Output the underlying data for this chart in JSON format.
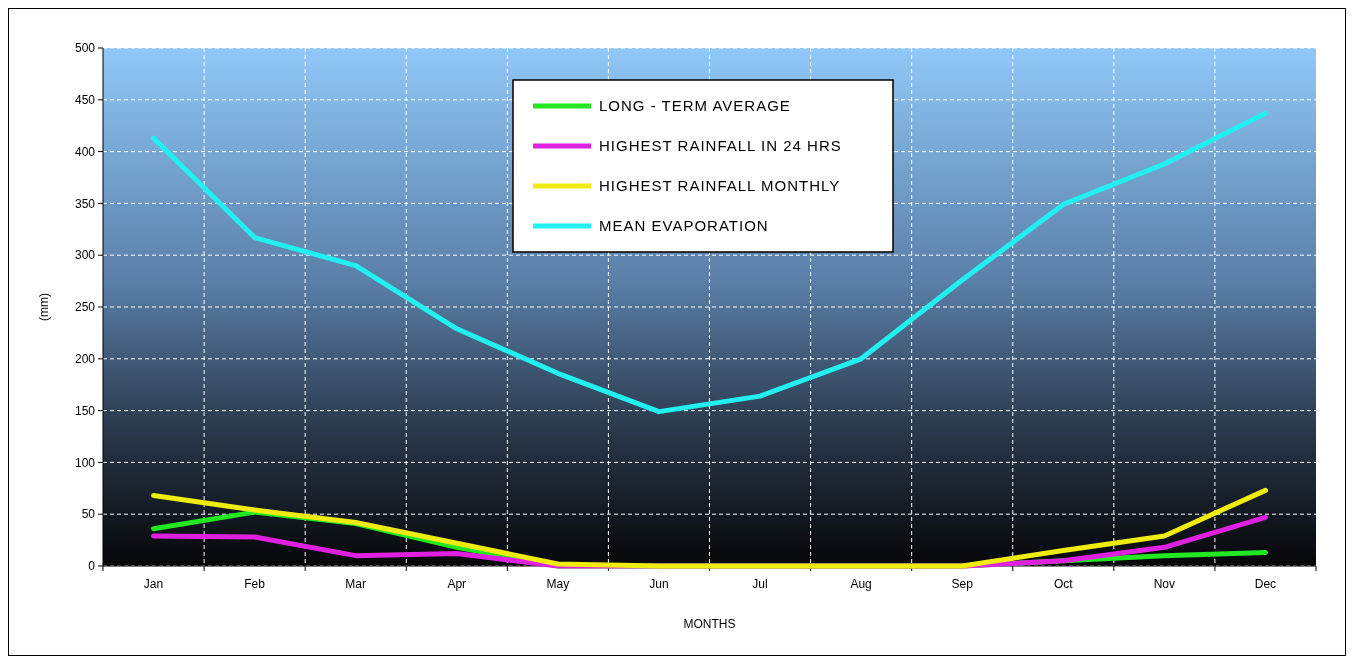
{
  "chart_data": {
    "type": "line",
    "xlabel": "MONTHS",
    "ylabel": "(mm)",
    "categories": [
      "Jan",
      "Feb",
      "Mar",
      "Apr",
      "May",
      "Jun",
      "Jul",
      "Aug",
      "Sep",
      "Oct",
      "Nov",
      "Dec"
    ],
    "series": [
      {
        "name": "LONG - TERM AVERAGE",
        "color": "#22e822",
        "values": [
          36,
          52,
          41,
          18,
          0,
          0,
          0,
          0,
          0,
          5,
          10,
          13
        ]
      },
      {
        "name": "HIGHEST RAINFALL  IN 24 HRS",
        "color": "#e020e0",
        "values": [
          29,
          28,
          10,
          12,
          0,
          0,
          0,
          0,
          0,
          5,
          18,
          47
        ]
      },
      {
        "name": "HIGHEST RAINFALL MONTHLY",
        "color": "#f0ec10",
        "values": [
          68,
          54,
          42,
          22,
          2,
          0,
          0,
          0,
          0,
          15,
          29,
          73
        ]
      },
      {
        "name": "MEAN EVAPORATION",
        "color": "#22f0f0",
        "values": [
          413,
          317,
          290,
          229,
          186,
          149,
          164,
          200,
          276,
          349,
          388,
          437
        ]
      }
    ],
    "ylim": [
      0,
      500
    ],
    "yticks": [
      0,
      50,
      100,
      150,
      200,
      250,
      300,
      350,
      400,
      450,
      500
    ],
    "grid": true,
    "legend": "top",
    "marker": "none",
    "line_style": "solid"
  }
}
